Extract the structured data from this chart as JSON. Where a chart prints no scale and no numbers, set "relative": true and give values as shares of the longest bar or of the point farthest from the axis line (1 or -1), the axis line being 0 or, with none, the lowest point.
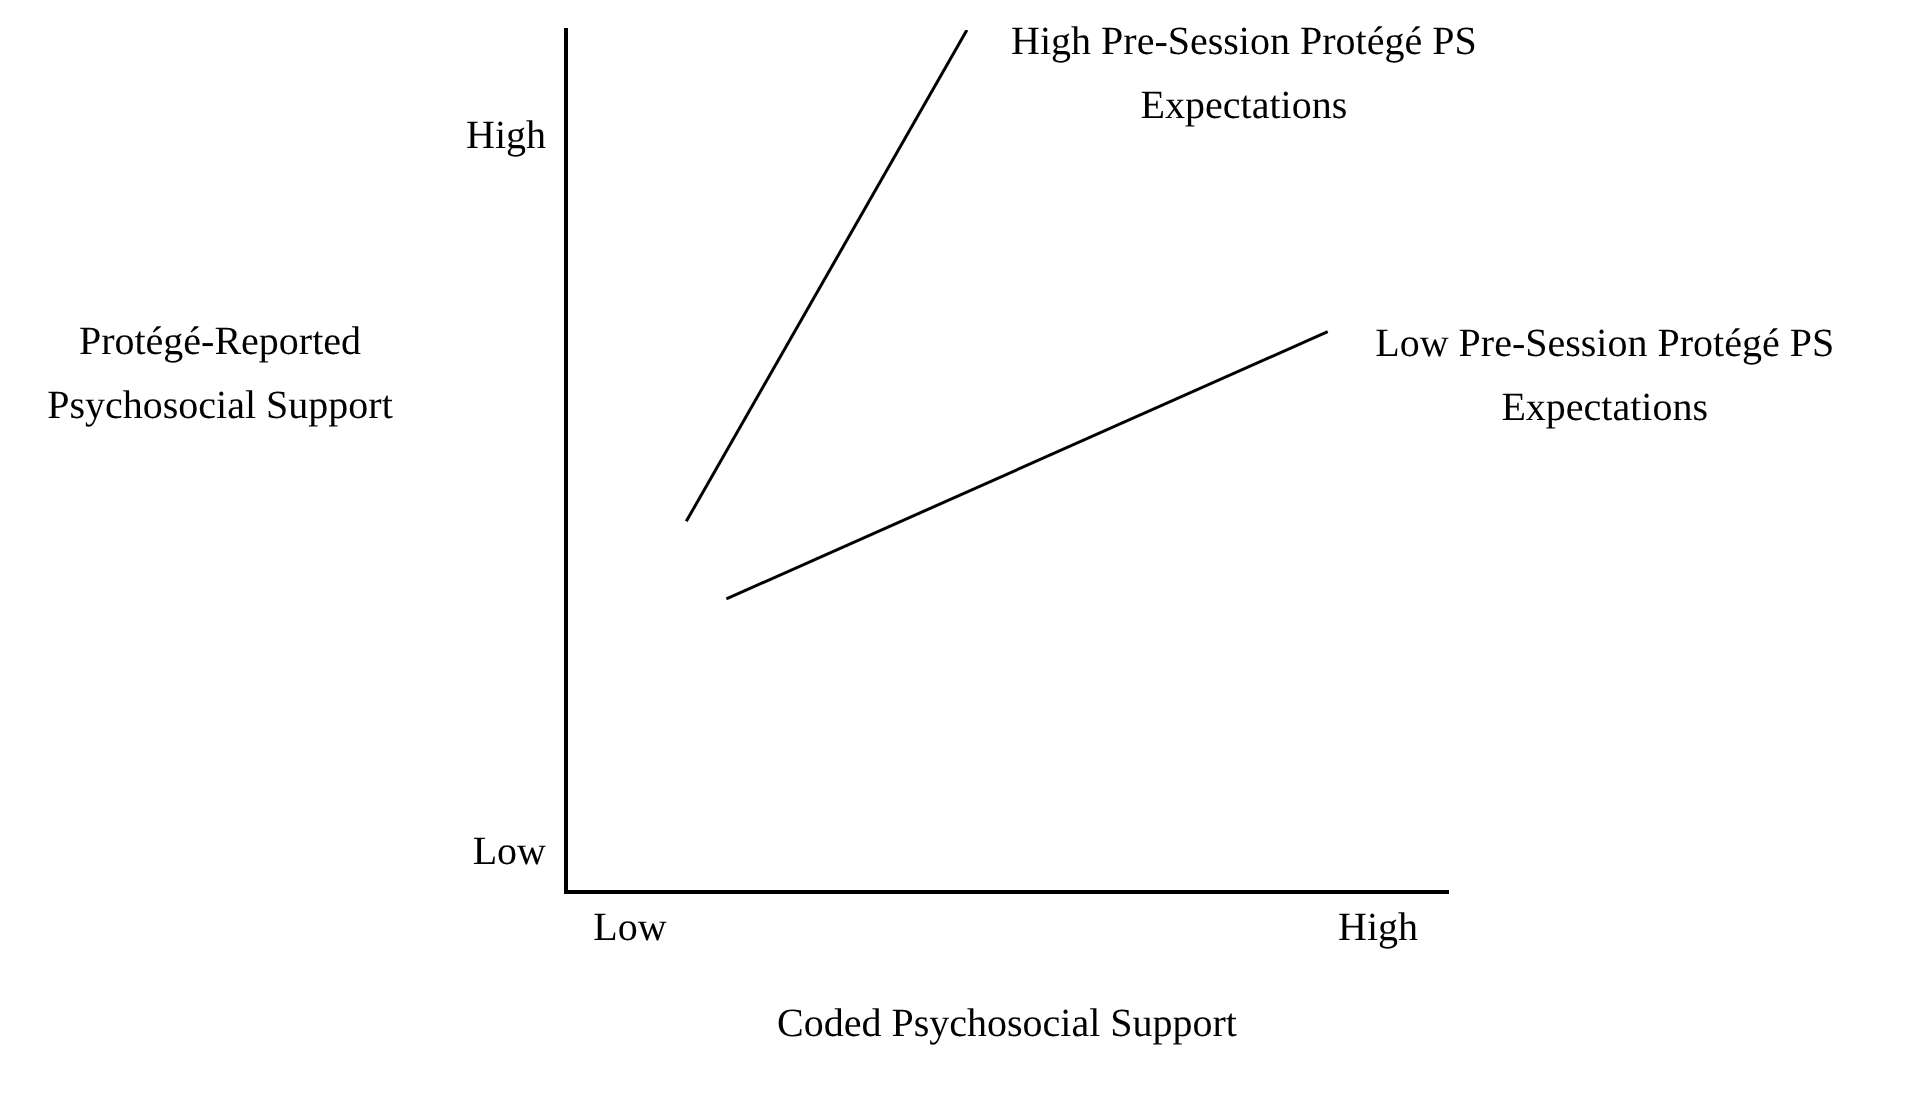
{
  "chart_data": {
    "type": "line",
    "xlabel": "Coded Psychosocial Support",
    "ylabel": "Protégé-Reported Psychosocial Support",
    "relative": true,
    "categories": [
      null,
      null,
      null,
      null,
      null,
      null,
      null,
      null,
      null,
      null,
      null,
      null,
      null,
      null,
      null,
      null,
      null,
      null,
      null,
      null,
      null,
      null,
      null
    ],
    "annotations": [
      "High",
      "Low",
      "Low",
      "High"
    ],
    "grid": false,
    "legend": false,
    "marker": "none",
    "line_style": "solid",
    "series": [
      {
        "name": "High Pre-Session Protégé PS Expectations",
        "color": "#000000",
        "values": [
          null,
          null,
          null,
          0.43,
          null,
          null,
          null,
          null,
          null,
          null,
          1,
          null,
          null,
          null,
          null,
          null,
          null,
          null,
          null,
          null,
          null,
          null,
          null
        ]
      },
      {
        "name": "Low Pre-Session Protégé PS Expectations",
        "color": "#000000",
        "values": [
          null,
          null,
          null,
          null,
          0.34,
          null,
          null,
          null,
          null,
          null,
          null,
          null,
          null,
          null,
          null,
          null,
          null,
          null,
          null,
          0.65,
          null,
          null,
          null
        ]
      }
    ]
  }
}
